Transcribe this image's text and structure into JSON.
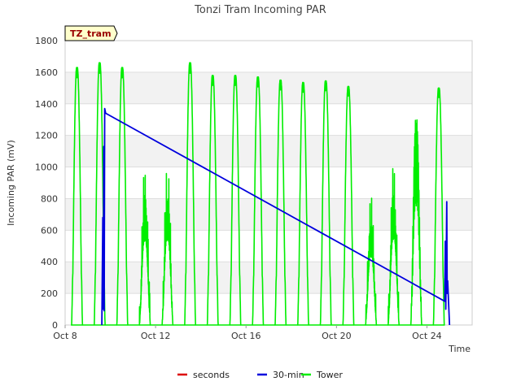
{
  "chart_data": {
    "type": "line",
    "title": "Tonzi Tram Incoming PAR",
    "xlabel": "Time",
    "ylabel": "Incoming PAR (mV)",
    "ylim": [
      0,
      1800
    ],
    "xlim": [
      "2024-10-08",
      "2024-10-26"
    ],
    "y_ticks": [
      0,
      200,
      400,
      600,
      800,
      1000,
      1200,
      1400,
      1600,
      1800
    ],
    "x_ticks": [
      {
        "date": "2024-10-08",
        "label": "Oct 8"
      },
      {
        "date": "2024-10-12",
        "label": "Oct 12"
      },
      {
        "date": "2024-10-16",
        "label": "Oct 16"
      },
      {
        "date": "2024-10-20",
        "label": "Oct 20"
      },
      {
        "date": "2024-10-24",
        "label": "Oct 24"
      }
    ],
    "grid": true,
    "banded_background": true,
    "legend_position": "bottom",
    "site_label": "TZ_tram",
    "series": [
      {
        "name": "seconds",
        "color": "#dd0000",
        "points": []
      },
      {
        "name": "30-min",
        "color": "#0000dd",
        "points": [
          [
            "2024-10-09 15:00",
            0
          ],
          [
            "2024-10-09 16:00",
            680
          ],
          [
            "2024-10-09 16:30",
            100
          ],
          [
            "2024-10-09 17:00",
            1130
          ],
          [
            "2024-10-09 17:30",
            90
          ],
          [
            "2024-10-09 18:00",
            1370
          ],
          [
            "2024-10-09 19:00",
            1340
          ],
          [
            "2024-10-24 19:00",
            150
          ],
          [
            "2024-10-24 19:30",
            530
          ],
          [
            "2024-10-24 20:00",
            100
          ],
          [
            "2024-10-24 21:00",
            780
          ],
          [
            "2024-10-24 21:30",
            200
          ],
          [
            "2024-10-24 22:00",
            280
          ],
          [
            "2024-10-25 00:00",
            0
          ]
        ]
      },
      {
        "name": "Tower",
        "color": "#00ee00",
        "daily_peaks": [
          [
            "2024-10-08",
            1630
          ],
          [
            "2024-10-09",
            1660
          ],
          [
            "2024-10-10",
            1630
          ],
          [
            "2024-10-11",
            880
          ],
          [
            "2024-10-12",
            900
          ],
          [
            "2024-10-13",
            1660
          ],
          [
            "2024-10-14",
            1580
          ],
          [
            "2024-10-15",
            1580
          ],
          [
            "2024-10-16",
            1570
          ],
          [
            "2024-10-17",
            1550
          ],
          [
            "2024-10-18",
            1535
          ],
          [
            "2024-10-19",
            1545
          ],
          [
            "2024-10-20",
            1510
          ],
          [
            "2024-10-21",
            720
          ],
          [
            "2024-10-22",
            900
          ],
          [
            "2024-10-23",
            1310
          ],
          [
            "2024-10-24",
            1500
          ]
        ]
      }
    ]
  }
}
